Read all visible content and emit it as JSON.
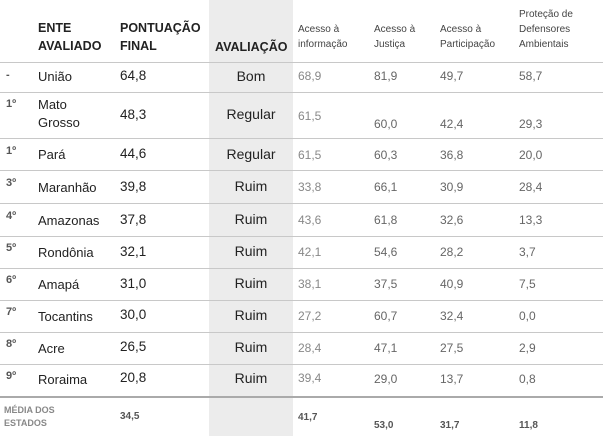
{
  "headers": {
    "ente": "ENTE AVALIADO",
    "pontuacao": "PONTUAÇÃO FINAL",
    "avaliacao": "AVALIAÇÃO",
    "acesso_info": "Acesso à informação",
    "acesso_justica": "Acesso à Justiça",
    "acesso_participacao": "Acesso à Participação",
    "protecao": "Proteção de Defensores Ambientais"
  },
  "rows": [
    {
      "rank": "-",
      "name": "União",
      "score": "64,8",
      "rating": "Bom",
      "info": "68,9",
      "justica": "81,9",
      "participacao": "49,7",
      "protecao": "58,7"
    },
    {
      "rank": "1º",
      "name": "Mato Grosso",
      "score": "48,3",
      "rating": "Regular",
      "info": "61,5",
      "justica": "60,0",
      "participacao": "42,4",
      "protecao": "29,3"
    },
    {
      "rank": "1º",
      "name": "Pará",
      "score": "44,6",
      "rating": "Regular",
      "info": "61,5",
      "justica": "60,3",
      "participacao": "36,8",
      "protecao": "20,0"
    },
    {
      "rank": "3º",
      "name": "Maranhão",
      "score": "39,8",
      "rating": "Ruim",
      "info": "33,8",
      "justica": "66,1",
      "participacao": "30,9",
      "protecao": "28,4"
    },
    {
      "rank": "4º",
      "name": "Amazonas",
      "score": "37,8",
      "rating": "Ruim",
      "info": "43,6",
      "justica": "61,8",
      "participacao": "32,6",
      "protecao": "13,3"
    },
    {
      "rank": "5º",
      "name": "Rondônia",
      "score": "32,1",
      "rating": "Ruim",
      "info": "42,1",
      "justica": "54,6",
      "participacao": "28,2",
      "protecao": "3,7"
    },
    {
      "rank": "6º",
      "name": "Amapá",
      "score": "31,0",
      "rating": "Ruim",
      "info": "38,1",
      "justica": "37,5",
      "participacao": "40,9",
      "protecao": "7,5"
    },
    {
      "rank": "7º",
      "name": "Tocantins",
      "score": "30,0",
      "rating": "Ruim",
      "info": "27,2",
      "justica": "60,7",
      "participacao": "32,4",
      "protecao": "0,0"
    },
    {
      "rank": "8º",
      "name": "Acre",
      "score": "26,5",
      "rating": "Ruim",
      "info": "28,4",
      "justica": "47,1",
      "participacao": "27,5",
      "protecao": "2,9"
    },
    {
      "rank": "9º",
      "name": "Roraima",
      "score": "20,8",
      "rating": "Ruim",
      "info": "39,4",
      "justica": "29,0",
      "participacao": "13,7",
      "protecao": "0,8"
    }
  ],
  "footer": {
    "label": "MÉDIA DOS ESTADOS",
    "score": "34,5",
    "info": "41,7",
    "justica": "53,0",
    "participacao": "31,7",
    "protecao": "11,8"
  }
}
